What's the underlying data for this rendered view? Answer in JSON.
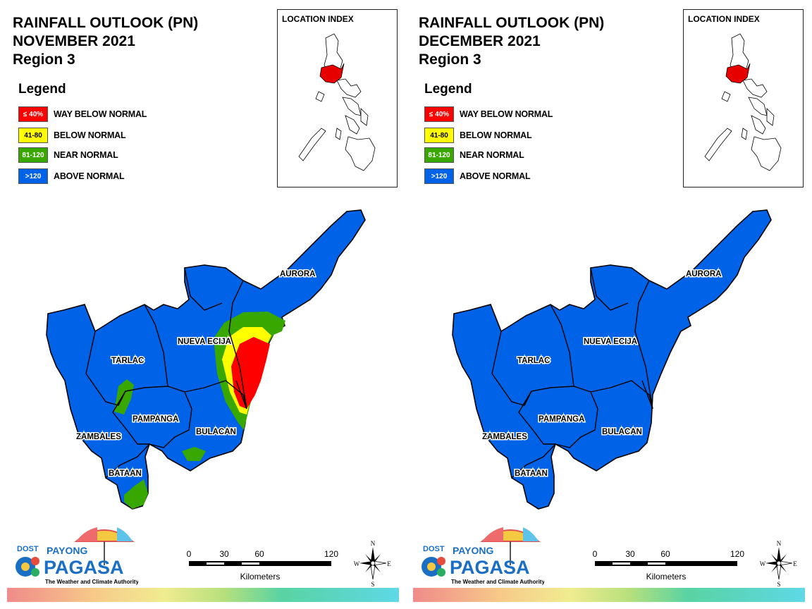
{
  "colors": {
    "way_below": "#ff0000",
    "below": "#ffff00",
    "near": "#38a800",
    "above": "#0062e6"
  },
  "panels": [
    {
      "title_line1": "RAINFALL OUTLOOK (PN)",
      "title_line2": "NOVEMBER 2021",
      "title_line3": "Region 3",
      "legend_title": "Legend",
      "legend": [
        {
          "code": "≤ 40%",
          "label": "WAY BELOW NORMAL",
          "color": "#ff0000"
        },
        {
          "code": "41-80",
          "label": "BELOW NORMAL",
          "color": "#ffff00"
        },
        {
          "code": "81-120",
          "label": "NEAR NORMAL",
          "color": "#38a800"
        },
        {
          "code": ">120",
          "label": "ABOVE NORMAL",
          "color": "#0062e6"
        }
      ],
      "location_index_title": "LOCATION INDEX",
      "provinces": [
        "AURORA",
        "NUEVA ECIJA",
        "TARLAC",
        "PAMPANGA",
        "BULACAN",
        "ZAMBALES",
        "BATAAN"
      ],
      "scale_ticks": [
        "0",
        "30",
        "60",
        "120"
      ],
      "scale_unit": "Kilometers",
      "compass": {
        "n": "N",
        "s": "S",
        "e": "E",
        "w": "W"
      },
      "logo": {
        "dost": "DOST",
        "payong": "PAYONG",
        "pagasa": "PAGASA",
        "tagline": "The Weather and Climate Authority"
      }
    },
    {
      "title_line1": "RAINFALL OUTLOOK (PN)",
      "title_line2": "DECEMBER 2021",
      "title_line3": "Region 3",
      "legend_title": "Legend",
      "legend": [
        {
          "code": "≤ 40%",
          "label": "WAY BELOW NORMAL",
          "color": "#ff0000"
        },
        {
          "code": "41-80",
          "label": "BELOW NORMAL",
          "color": "#ffff00"
        },
        {
          "code": "81-120",
          "label": "NEAR NORMAL",
          "color": "#38a800"
        },
        {
          "code": ">120",
          "label": "ABOVE NORMAL",
          "color": "#0062e6"
        }
      ],
      "location_index_title": "LOCATION INDEX",
      "provinces": [
        "AURORA",
        "NUEVA ECIJA",
        "TARLAC",
        "PAMPANGA",
        "BULACAN",
        "ZAMBALES",
        "BATAAN"
      ],
      "scale_ticks": [
        "0",
        "30",
        "60",
        "120"
      ],
      "scale_unit": "Kilometers",
      "compass": {
        "n": "N",
        "s": "S",
        "e": "E",
        "w": "W"
      },
      "logo": {
        "dost": "DOST",
        "payong": "PAYONG",
        "pagasa": "PAGASA",
        "tagline": "The Weather and Climate Authority"
      }
    }
  ]
}
